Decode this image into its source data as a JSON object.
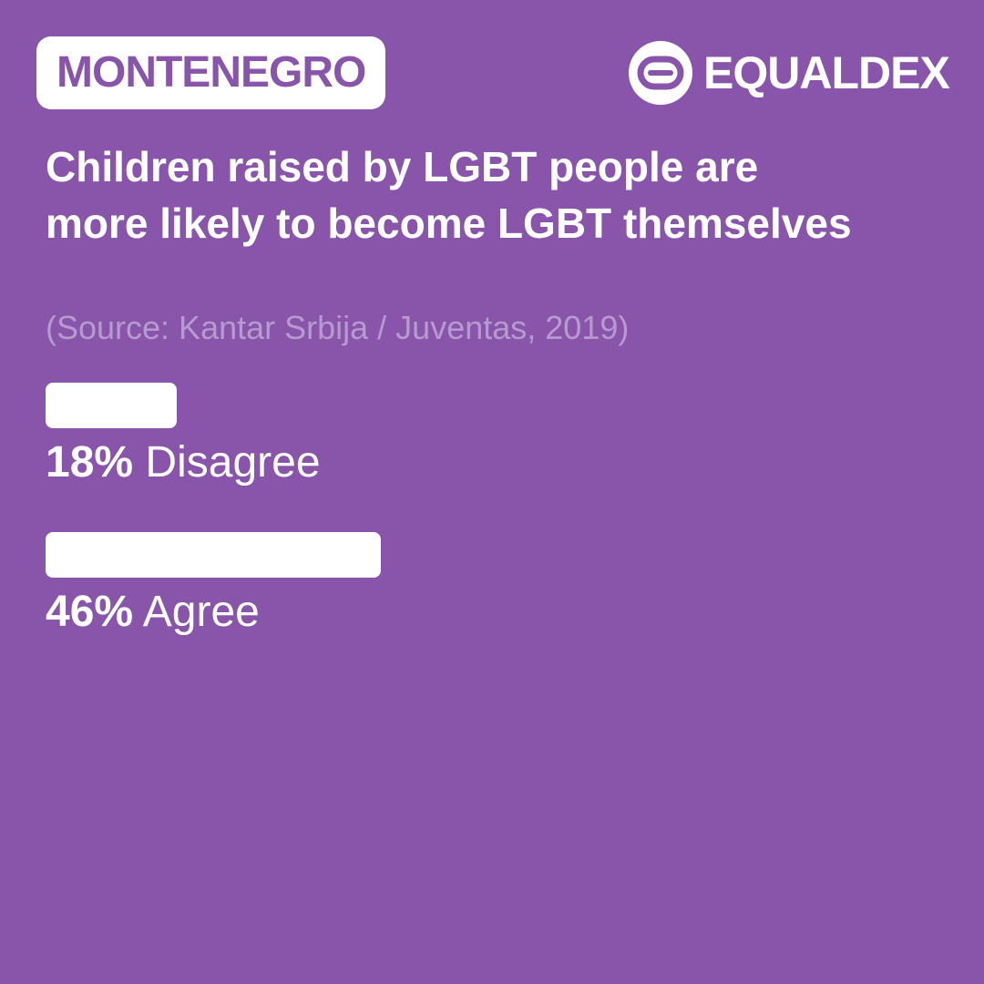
{
  "header": {
    "country": "MONTENEGRO",
    "brand_name": "EQUALDEX",
    "brand_icon": "equaldex-logo-icon"
  },
  "colors": {
    "background": "#8855aa",
    "bar": "#ffffff",
    "text": "#ffffff",
    "source_text": "#b79ad0"
  },
  "chart_data": {
    "type": "bar",
    "orientation": "horizontal",
    "title": "Children raised by LGBT people are more likely to become LGBT themselves",
    "subtitle": "(Source: Kantar Srbija / Juventas, 2019)",
    "unit": "%",
    "xlim": [
      0,
      100
    ],
    "grid": false,
    "categories": [
      "Disagree",
      "Agree"
    ],
    "values": [
      18,
      46
    ],
    "labels": [
      {
        "value": "18%",
        "name": "Disagree"
      },
      {
        "value": "46%",
        "name": "Agree"
      }
    ]
  }
}
